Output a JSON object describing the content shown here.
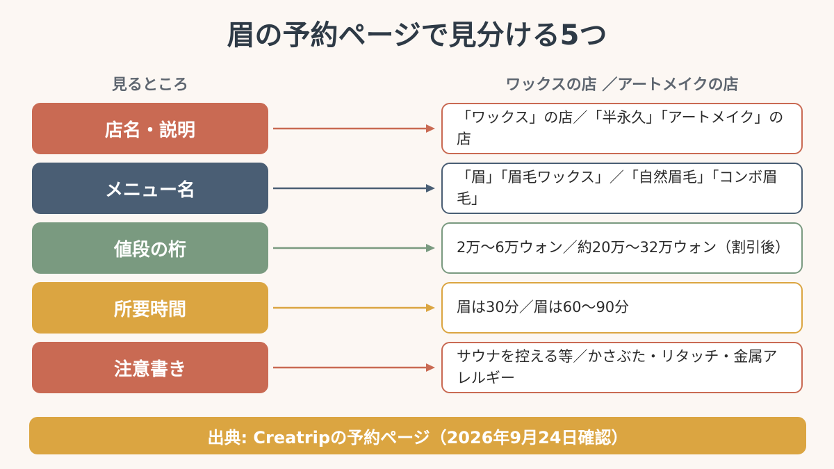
{
  "title": "眉の予約ページで見分ける5つ",
  "columns": {
    "left": "見るところ",
    "right": "ワックスの店 ／アートメイクの店"
  },
  "rows": [
    {
      "label": "店名・説明",
      "value": "「ワックス」の店／「半永久」「アートメイク」の店",
      "color": "#c96a53"
    },
    {
      "label": "メニュー名",
      "value": "「眉」「眉毛ワックス」／「自然眉毛」「コンボ眉毛」",
      "color": "#4a5e74"
    },
    {
      "label": "値段の桁",
      "value": "2万〜6万ウォン／約20万〜32万ウォン（割引後）",
      "color": "#7a9a80"
    },
    {
      "label": "所要時間",
      "value": "眉は30分／眉は60〜90分",
      "color": "#dba541"
    },
    {
      "label": "注意書き",
      "value": "サウナを控える等／かさぶた・リタッチ・金属アレルギー",
      "color": "#c96a53"
    }
  ],
  "footer": "出典: Creatripの予約ページ（2026年9月24日確認）"
}
